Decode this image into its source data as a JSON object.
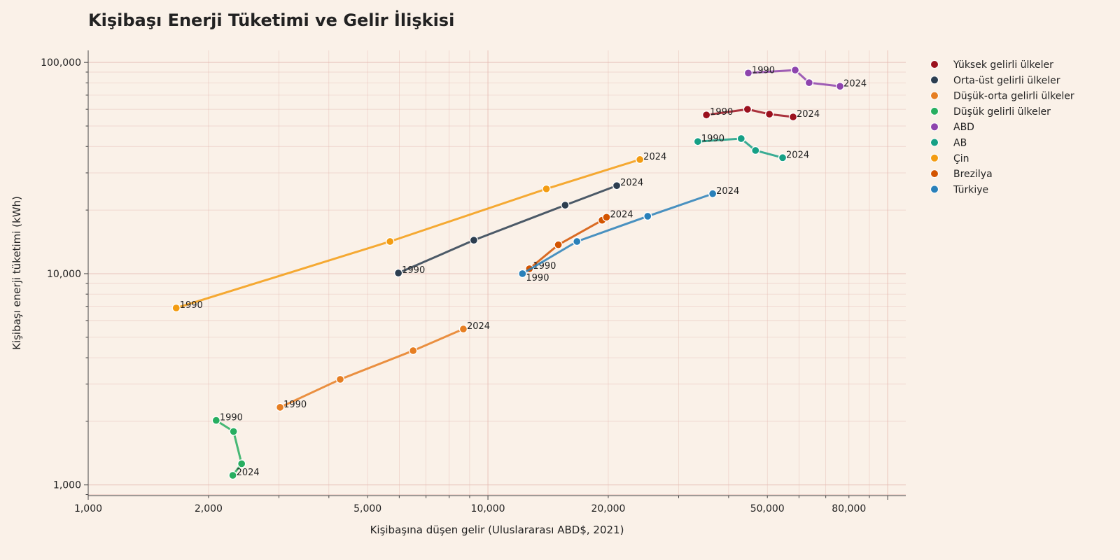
{
  "chart_data": {
    "type": "line",
    "title": "Kişibaşı Enerji Tüketimi ve Gelir İlişkisi",
    "xlabel": "Kişibaşına düşen gelir (Uluslararası ABD$, 2021)",
    "ylabel": "Kişibaşı enerji tüketimi (kWh)",
    "xscale": "log",
    "yscale": "log",
    "xlim": [
      1000,
      111000
    ],
    "ylim": [
      890,
      114000
    ],
    "xticks": [
      1000,
      2000,
      5000,
      10000,
      20000,
      50000,
      80000
    ],
    "xtick_labels": [
      "1,000",
      "2,000",
      "5,000",
      "10,000",
      "20,000",
      "50,000",
      "80,000"
    ],
    "yticks": [
      1000,
      10000,
      100000
    ],
    "ytick_labels": [
      "1,000",
      "10,000",
      "100,000"
    ],
    "grid": true,
    "legend_position": "right",
    "background": "#faf1e8",
    "series": [
      {
        "name": "Yüksek gelirli ülkeler",
        "color": "#9b111e",
        "x": [
          35200,
          44600,
          50600,
          58000
        ],
        "y": [
          56400,
          60000,
          56900,
          55200
        ],
        "start_label": "1990",
        "end_label": "2024"
      },
      {
        "name": "Orta-üst gelirli ülkeler",
        "color": "#2c3e50",
        "x": [
          5970,
          9220,
          15600,
          21000
        ],
        "y": [
          10070,
          14400,
          21100,
          26100
        ],
        "start_label": "1990",
        "end_label": "2024"
      },
      {
        "name": "Düşük-orta gelirli ülkeler",
        "color": "#e67e22",
        "x": [
          3020,
          4270,
          6500,
          8680
        ],
        "y": [
          2330,
          3160,
          4320,
          5470
        ],
        "start_label": "1990",
        "end_label": "2024"
      },
      {
        "name": "Düşük gelirli ülkeler",
        "color": "#27ae60",
        "x": [
          2090,
          2310,
          2420,
          2300
        ],
        "y": [
          2020,
          1790,
          1260,
          1110
        ],
        "start_label": "1990",
        "end_label": "2024"
      },
      {
        "name": "ABD",
        "color": "#8e44ad",
        "x": [
          44800,
          58700,
          63600,
          76000
        ],
        "y": [
          89100,
          92000,
          80200,
          77100
        ],
        "start_label": "1990",
        "end_label": "2024"
      },
      {
        "name": "AB",
        "color": "#16a085",
        "x": [
          33500,
          43000,
          46700,
          54600
        ],
        "y": [
          42200,
          43600,
          38300,
          35400
        ],
        "start_label": "1990",
        "end_label": "2024"
      },
      {
        "name": "Çin",
        "color": "#f39c12",
        "x": [
          1660,
          5690,
          14000,
          24000
        ],
        "y": [
          6880,
          14200,
          25200,
          34700
        ],
        "start_label": "1990",
        "end_label": "2024"
      },
      {
        "name": "Brezilya",
        "color": "#d35400",
        "x": [
          12700,
          15000,
          19300,
          19800
        ],
        "y": [
          10550,
          13700,
          17900,
          18500
        ],
        "start_label": "1990",
        "end_label": "2024"
      },
      {
        "name": "Türkiye",
        "color": "#2980b9",
        "x": [
          12200,
          16700,
          25100,
          36500
        ],
        "y": [
          10000,
          14200,
          18700,
          23900
        ],
        "start_label": "1990",
        "end_label": "2024"
      }
    ]
  }
}
